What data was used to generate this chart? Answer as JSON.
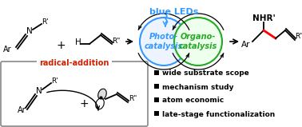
{
  "background_color": "#ffffff",
  "blue_led_text": "blue LEDs",
  "blue_led_color": "#3399FF",
  "photo_text": "Photo-\ncatalysis",
  "photo_color": "#3399FF",
  "organo_text": "Organo-\ncatalysis",
  "organo_color": "#22AA22",
  "radical_text": "radical-addition",
  "radical_color": "#CC2200",
  "bullets": [
    "wide substrate scope",
    "mechanism study",
    "atom economic",
    "late-stage functionalization"
  ],
  "fig_width": 3.78,
  "fig_height": 1.59,
  "dpi": 100
}
